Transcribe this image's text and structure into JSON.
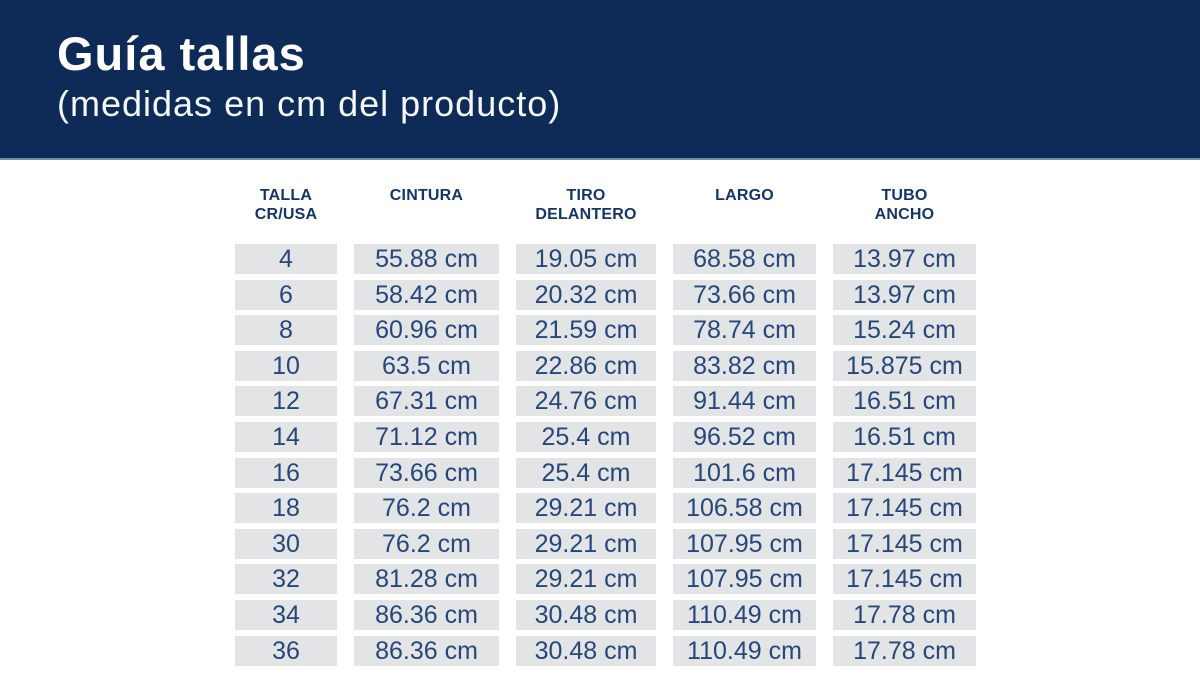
{
  "header": {
    "title": "Guía tallas",
    "subtitle": "(medidas en cm del producto)"
  },
  "colors": {
    "band_background": "#0e2b58",
    "header_text": "#143569",
    "value_text": "#26477a",
    "cell_background": "#e3e4e6"
  },
  "table": {
    "columns": [
      {
        "label_lines": [
          "TALLA",
          "CR/USA"
        ]
      },
      {
        "label_lines": [
          "CINTURA"
        ]
      },
      {
        "label_lines": [
          "TIRO",
          "DELANTERO"
        ]
      },
      {
        "label_lines": [
          "LARGO"
        ]
      },
      {
        "label_lines": [
          "TUBO",
          "ANCHO"
        ]
      }
    ],
    "rows": [
      [
        "4",
        "55.88 cm",
        "19.05 cm",
        "68.58 cm",
        "13.97 cm"
      ],
      [
        "6",
        "58.42 cm",
        "20.32 cm",
        "73.66 cm",
        "13.97 cm"
      ],
      [
        "8",
        "60.96 cm",
        "21.59 cm",
        "78.74 cm",
        "15.24 cm"
      ],
      [
        "10",
        "63.5 cm",
        "22.86 cm",
        "83.82 cm",
        "15.875 cm"
      ],
      [
        "12",
        "67.31 cm",
        "24.76 cm",
        "91.44 cm",
        "16.51 cm"
      ],
      [
        "14",
        "71.12 cm",
        "25.4 cm",
        "96.52 cm",
        "16.51 cm"
      ],
      [
        "16",
        "73.66 cm",
        "25.4 cm",
        "101.6 cm",
        "17.145 cm"
      ],
      [
        "18",
        "76.2 cm",
        "29.21 cm",
        "106.58 cm",
        "17.145 cm"
      ],
      [
        "30",
        "76.2 cm",
        "29.21 cm",
        "107.95 cm",
        "17.145 cm"
      ],
      [
        "32",
        "81.28 cm",
        "29.21 cm",
        "107.95 cm",
        "17.145 cm"
      ],
      [
        "34",
        "86.36 cm",
        "30.48 cm",
        "110.49 cm",
        "17.78 cm"
      ],
      [
        "36",
        "86.36 cm",
        "30.48 cm",
        "110.49 cm",
        "17.78 cm"
      ]
    ]
  }
}
